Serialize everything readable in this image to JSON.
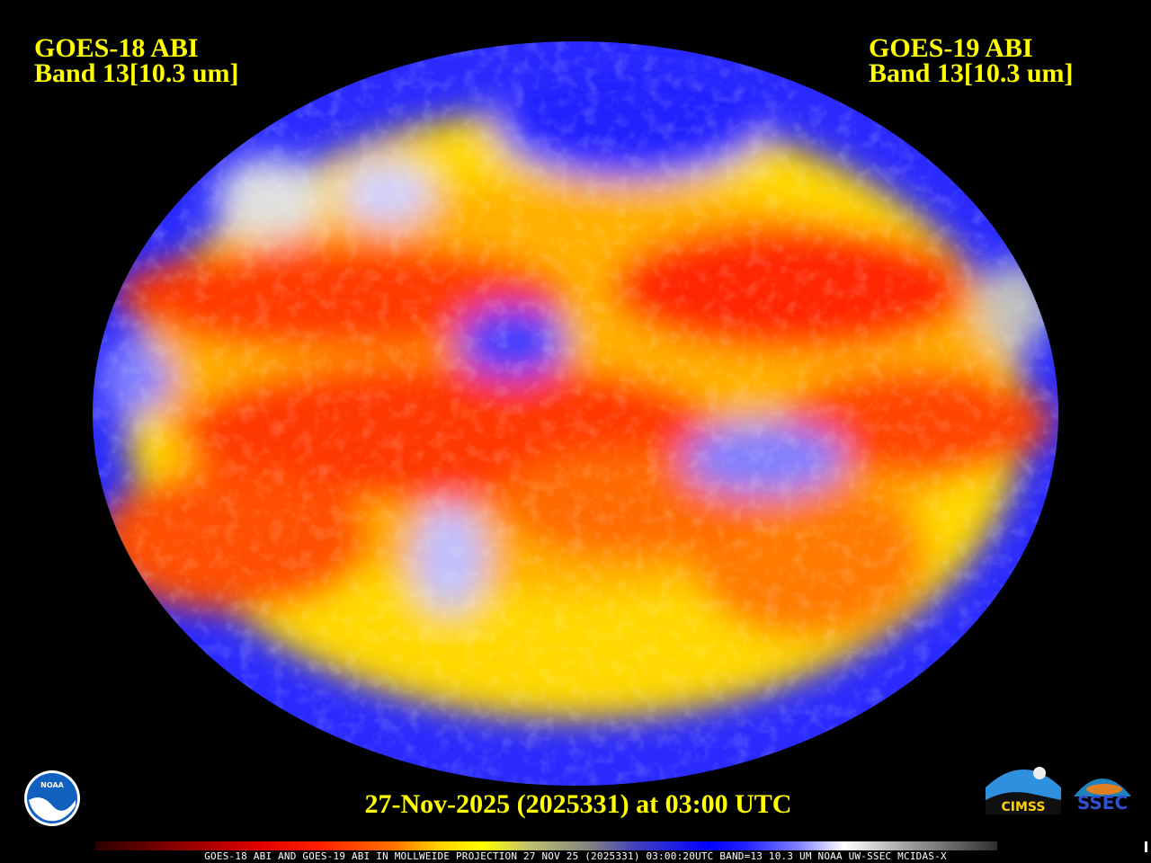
{
  "left_title": {
    "line1": "GOES-18 ABI",
    "line2": "Band 13[10.3 um]"
  },
  "right_title": {
    "line1": "GOES-19 ABI",
    "line2": "Band 13[10.3 um]"
  },
  "date_label": "27-Nov-2025 (2025331) at 03:00 UTC",
  "footer_text": "GOES-18 ABI AND GOES-19 ABI IN MOLLWEIDE PROJECTION 27 NOV 25 (2025331) 03:00:20UTC BAND=13 10.3 UM NOAA UW-SSEC MCIDAS-X",
  "logos": {
    "noaa": "NOAA",
    "cimss": "CIMSS",
    "ssec": "SSEC"
  },
  "colors": {
    "title": "#ffff00",
    "background": "#000000",
    "warm": "#ff2000",
    "mid": "#ffff00",
    "cold": "#0000ff"
  }
}
